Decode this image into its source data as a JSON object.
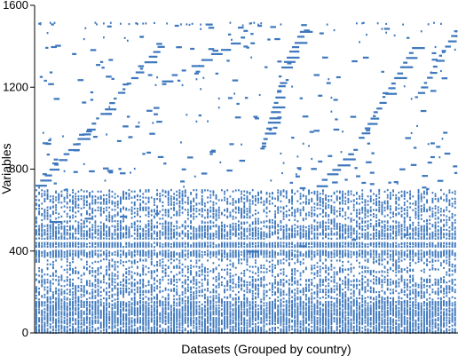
{
  "chart_data": {
    "type": "scatter",
    "title": "",
    "xlabel": "Datasets (Grouped by country)",
    "ylabel": "Variables",
    "ylim": [
      0,
      1600
    ],
    "y_ticks": [
      0,
      400,
      800,
      1200,
      1600
    ],
    "x_ticks": [],
    "x_tick_labels": "none",
    "x_count": 300,
    "grid": false,
    "legend": "none",
    "marker_color": "#3d77bd",
    "description_of_pattern": "sparse presence matrix: dense near-horizontal bands at low and middle variable indices, diagonal staircase segments rising across groups above ~700",
    "dense_bands": [
      {
        "y": [
          0,
          150
        ],
        "density": 0.92
      },
      {
        "y": [
          150,
          260
        ],
        "density": 0.55
      },
      {
        "y": [
          260,
          310
        ],
        "density": 0.35
      },
      {
        "y": [
          310,
          360
        ],
        "density": 0.3
      },
      {
        "y": [
          370,
          400
        ],
        "density": 0.9
      },
      {
        "y": [
          420,
          440
        ],
        "density": 0.9
      },
      {
        "y": [
          460,
          520
        ],
        "density": 0.85
      },
      {
        "y": [
          520,
          600
        ],
        "density": 0.35
      },
      {
        "y": [
          600,
          700
        ],
        "density": 0.45
      }
    ],
    "diagonal_segments": [
      {
        "x": [
          0,
          40
        ],
        "y": [
          720,
          1020
        ]
      },
      {
        "x": [
          40,
          90
        ],
        "y": [
          1020,
          1420
        ]
      },
      {
        "x": [
          90,
          160
        ],
        "y": [
          1230,
          1490
        ]
      },
      {
        "x": [
          160,
          175
        ],
        "y": [
          900,
          1250
        ]
      },
      {
        "x": [
          175,
          190
        ],
        "y": [
          1300,
          1490
        ]
      },
      {
        "x": [
          200,
          230
        ],
        "y": [
          720,
          920
        ]
      },
      {
        "x": [
          230,
          270
        ],
        "y": [
          950,
          1420
        ]
      },
      {
        "x": [
          270,
          300
        ],
        "y": [
          1150,
          1500
        ]
      },
      {
        "x": [
          10,
          110
        ],
        "y": [
          540,
          600
        ]
      },
      {
        "x": [
          150,
          300
        ],
        "y": [
          400,
          500
        ]
      }
    ]
  }
}
